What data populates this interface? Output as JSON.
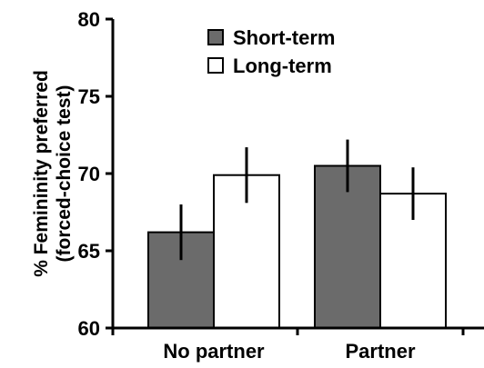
{
  "chart_data": {
    "type": "bar",
    "title": "",
    "xlabel": "",
    "ylabel": "% Femininity preferred",
    "ylabel_line2": "(forced-choice test)",
    "ylim": [
      60,
      80
    ],
    "yticks": [
      60,
      65,
      70,
      75,
      80
    ],
    "categories": [
      "No partner",
      "Partner"
    ],
    "series": [
      {
        "name": "Short-term",
        "color": "#6b6b6b",
        "values": [
          66.2,
          70.5
        ],
        "error": [
          1.8,
          1.7
        ]
      },
      {
        "name": "Long-term",
        "color": "#ffffff",
        "values": [
          69.9,
          68.7
        ],
        "error": [
          1.8,
          1.7
        ]
      }
    ],
    "legend_position": "top-center",
    "grid": false,
    "error_bars": true
  }
}
